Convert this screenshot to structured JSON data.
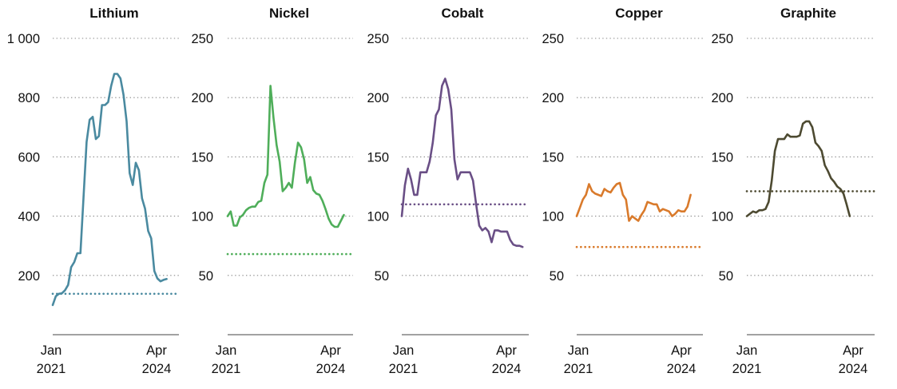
{
  "chart_data": [
    {
      "type": "line",
      "title": "Lithium",
      "color": "#4a8aa0",
      "ylim": [
        0,
        1000
      ],
      "yticks": [
        200,
        400,
        600,
        800,
        1000
      ],
      "ytick_labels": [
        "200",
        "400",
        "600",
        "800",
        "1 000"
      ],
      "xlim": [
        "2021-01",
        "2024-06"
      ],
      "xtick_labels": [
        [
          "Jan",
          "2021"
        ],
        [
          "Apr",
          "2024"
        ]
      ],
      "series": [
        {
          "points": [
            [
              "2021-01",
              100
            ],
            [
              "2021-02",
              130
            ],
            [
              "2021-03",
              138
            ],
            [
              "2021-04",
              140
            ],
            [
              "2021-05",
              150
            ],
            [
              "2021-06",
              168
            ],
            [
              "2021-07",
              228
            ],
            [
              "2021-08",
              245
            ],
            [
              "2021-09",
              275
            ],
            [
              "2021-10",
              275
            ],
            [
              "2021-11",
              460
            ],
            [
              "2021-12",
              650
            ],
            [
              "2022-01",
              725
            ],
            [
              "2022-02",
              735
            ],
            [
              "2022-03",
              660
            ],
            [
              "2022-04",
              670
            ],
            [
              "2022-05",
              775
            ],
            [
              "2022-06",
              775
            ],
            [
              "2022-07",
              785
            ],
            [
              "2022-08",
              840
            ],
            [
              "2022-09",
              880
            ],
            [
              "2022-10",
              880
            ],
            [
              "2022-11",
              865
            ],
            [
              "2022-12",
              810
            ],
            [
              "2023-01",
              720
            ],
            [
              "2023-02",
              545
            ],
            [
              "2023-03",
              505
            ],
            [
              "2023-04",
              580
            ],
            [
              "2023-05",
              555
            ],
            [
              "2023-06",
              460
            ],
            [
              "2023-07",
              425
            ],
            [
              "2023-08",
              350
            ],
            [
              "2023-09",
              325
            ],
            [
              "2023-10",
              215
            ],
            [
              "2023-11",
              190
            ],
            [
              "2023-12",
              180
            ],
            [
              "2024-01",
              185
            ],
            [
              "2024-02",
              188
            ]
          ]
        },
        {
          "dotted": true,
          "points": [
            [
              "2021-01",
              138
            ],
            [
              "2024-06",
              138
            ]
          ]
        }
      ]
    },
    {
      "type": "line",
      "title": "Nickel",
      "color": "#4fae5a",
      "ylim": [
        0,
        250
      ],
      "yticks": [
        50,
        100,
        150,
        200,
        250
      ],
      "ytick_labels": [
        "50",
        "100",
        "150",
        "200",
        "250"
      ],
      "xlim": [
        "2021-01",
        "2024-06"
      ],
      "xtick_labels": [
        [
          "Jan",
          "2021"
        ],
        [
          "Apr",
          "2024"
        ]
      ],
      "series": [
        {
          "points": [
            [
              "2021-01",
              100
            ],
            [
              "2021-02",
              104
            ],
            [
              "2021-03",
              92
            ],
            [
              "2021-04",
              92
            ],
            [
              "2021-05",
              99
            ],
            [
              "2021-06",
              101
            ],
            [
              "2021-07",
              105
            ],
            [
              "2021-08",
              107
            ],
            [
              "2021-09",
              108
            ],
            [
              "2021-10",
              108
            ],
            [
              "2021-11",
              112
            ],
            [
              "2021-12",
              113
            ],
            [
              "2022-01",
              128
            ],
            [
              "2022-02",
              135
            ],
            [
              "2022-03",
              210
            ],
            [
              "2022-04",
              183
            ],
            [
              "2022-05",
              160
            ],
            [
              "2022-06",
              146
            ],
            [
              "2022-07",
              121
            ],
            [
              "2022-08",
              124
            ],
            [
              "2022-09",
              128
            ],
            [
              "2022-10",
              124
            ],
            [
              "2022-11",
              145
            ],
            [
              "2022-12",
              162
            ],
            [
              "2023-01",
              158
            ],
            [
              "2023-02",
              148
            ],
            [
              "2023-03",
              128
            ],
            [
              "2023-04",
              133
            ],
            [
              "2023-05",
              122
            ],
            [
              "2023-06",
              119
            ],
            [
              "2023-07",
              118
            ],
            [
              "2023-08",
              113
            ],
            [
              "2023-09",
              106
            ],
            [
              "2023-10",
              98
            ],
            [
              "2023-11",
              93
            ],
            [
              "2023-12",
              91
            ],
            [
              "2024-01",
              91
            ],
            [
              "2024-02",
              96
            ],
            [
              "2024-03",
              101
            ]
          ]
        },
        {
          "dotted": true,
          "points": [
            [
              "2021-01",
              68
            ],
            [
              "2024-06",
              68
            ]
          ]
        }
      ]
    },
    {
      "type": "line",
      "title": "Cobalt",
      "color": "#6a4f86",
      "ylim": [
        0,
        250
      ],
      "yticks": [
        50,
        100,
        150,
        200,
        250
      ],
      "ytick_labels": [
        "50",
        "100",
        "150",
        "200",
        "250"
      ],
      "xlim": [
        "2021-01",
        "2024-06"
      ],
      "xtick_labels": [
        [
          "Jan",
          "2021"
        ],
        [
          "Apr",
          "2024"
        ]
      ],
      "series": [
        {
          "points": [
            [
              "2021-01",
              100
            ],
            [
              "2021-02",
              126
            ],
            [
              "2021-03",
              140
            ],
            [
              "2021-04",
              131
            ],
            [
              "2021-05",
              118
            ],
            [
              "2021-06",
              118
            ],
            [
              "2021-07",
              137
            ],
            [
              "2021-08",
              137
            ],
            [
              "2021-09",
              137
            ],
            [
              "2021-10",
              146
            ],
            [
              "2021-11",
              162
            ],
            [
              "2021-12",
              185
            ],
            [
              "2022-01",
              190
            ],
            [
              "2022-02",
              210
            ],
            [
              "2022-03",
              216
            ],
            [
              "2022-04",
              207
            ],
            [
              "2022-05",
              190
            ],
            [
              "2022-06",
              148
            ],
            [
              "2022-07",
              131
            ],
            [
              "2022-08",
              137
            ],
            [
              "2022-09",
              137
            ],
            [
              "2022-10",
              137
            ],
            [
              "2022-11",
              137
            ],
            [
              "2022-12",
              130
            ],
            [
              "2023-01",
              110
            ],
            [
              "2023-02",
              92
            ],
            [
              "2023-03",
              88
            ],
            [
              "2023-04",
              90
            ],
            [
              "2023-05",
              87
            ],
            [
              "2023-06",
              78
            ],
            [
              "2023-07",
              88
            ],
            [
              "2023-08",
              88
            ],
            [
              "2023-09",
              87
            ],
            [
              "2023-10",
              87
            ],
            [
              "2023-11",
              87
            ],
            [
              "2023-12",
              80
            ],
            [
              "2024-01",
              76
            ],
            [
              "2024-02",
              75
            ],
            [
              "2024-03",
              75
            ],
            [
              "2024-04",
              74
            ]
          ]
        },
        {
          "dotted": true,
          "points": [
            [
              "2021-01",
              110
            ],
            [
              "2024-06",
              110
            ]
          ]
        }
      ]
    },
    {
      "type": "line",
      "title": "Copper",
      "color": "#d97a2b",
      "ylim": [
        0,
        250
      ],
      "yticks": [
        50,
        100,
        150,
        200,
        250
      ],
      "ytick_labels": [
        "50",
        "100",
        "150",
        "200",
        "250"
      ],
      "xlim": [
        "2021-01",
        "2024-06"
      ],
      "xtick_labels": [
        [
          "Jan",
          "2021"
        ],
        [
          "Apr",
          "2024"
        ]
      ],
      "series": [
        {
          "points": [
            [
              "2021-01",
              100
            ],
            [
              "2021-02",
              107
            ],
            [
              "2021-03",
              114
            ],
            [
              "2021-04",
              118
            ],
            [
              "2021-05",
              127
            ],
            [
              "2021-06",
              121
            ],
            [
              "2021-07",
              119
            ],
            [
              "2021-08",
              118
            ],
            [
              "2021-09",
              117
            ],
            [
              "2021-10",
              123
            ],
            [
              "2021-11",
              121
            ],
            [
              "2021-12",
              120
            ],
            [
              "2022-01",
              124
            ],
            [
              "2022-02",
              127
            ],
            [
              "2022-03",
              128
            ],
            [
              "2022-04",
              118
            ],
            [
              "2022-05",
              114
            ],
            [
              "2022-06",
              96
            ],
            [
              "2022-07",
              100
            ],
            [
              "2022-08",
              98
            ],
            [
              "2022-09",
              96
            ],
            [
              "2022-10",
              101
            ],
            [
              "2022-11",
              105
            ],
            [
              "2022-12",
              112
            ],
            [
              "2023-01",
              111
            ],
            [
              "2023-02",
              110
            ],
            [
              "2023-03",
              110
            ],
            [
              "2023-04",
              104
            ],
            [
              "2023-05",
              106
            ],
            [
              "2023-06",
              105
            ],
            [
              "2023-07",
              104
            ],
            [
              "2023-08",
              100
            ],
            [
              "2023-09",
              102
            ],
            [
              "2023-10",
              105
            ],
            [
              "2023-11",
              104
            ],
            [
              "2023-12",
              104
            ],
            [
              "2024-01",
              108
            ],
            [
              "2024-02",
              118
            ]
          ]
        },
        {
          "dotted": true,
          "points": [
            [
              "2021-01",
              74
            ],
            [
              "2024-06",
              74
            ]
          ]
        }
      ]
    },
    {
      "type": "line",
      "title": "Graphite",
      "color": "#4d4a31",
      "ylim": [
        0,
        250
      ],
      "yticks": [
        50,
        100,
        150,
        200,
        250
      ],
      "ytick_labels": [
        "50",
        "100",
        "150",
        "200",
        "250"
      ],
      "xlim": [
        "2021-01",
        "2024-06"
      ],
      "xtick_labels": [
        [
          "Jan",
          "2021"
        ],
        [
          "Apr",
          "2024"
        ]
      ],
      "series": [
        {
          "points": [
            [
              "2021-01",
              100
            ],
            [
              "2021-02",
              102
            ],
            [
              "2021-03",
              104
            ],
            [
              "2021-04",
              103
            ],
            [
              "2021-05",
              105
            ],
            [
              "2021-06",
              105
            ],
            [
              "2021-07",
              106
            ],
            [
              "2021-08",
              112
            ],
            [
              "2021-09",
              130
            ],
            [
              "2021-10",
              155
            ],
            [
              "2021-11",
              165
            ],
            [
              "2021-12",
              165
            ],
            [
              "2022-01",
              165
            ],
            [
              "2022-02",
              169
            ],
            [
              "2022-03",
              167
            ],
            [
              "2022-04",
              167
            ],
            [
              "2022-05",
              167
            ],
            [
              "2022-06",
              168
            ],
            [
              "2022-07",
              178
            ],
            [
              "2022-08",
              180
            ],
            [
              "2022-09",
              180
            ],
            [
              "2022-10",
              175
            ],
            [
              "2022-11",
              162
            ],
            [
              "2022-12",
              159
            ],
            [
              "2023-01",
              155
            ],
            [
              "2023-02",
              143
            ],
            [
              "2023-03",
              138
            ],
            [
              "2023-04",
              132
            ],
            [
              "2023-05",
              129
            ],
            [
              "2023-06",
              125
            ],
            [
              "2023-07",
              123
            ],
            [
              "2023-08",
              119
            ],
            [
              "2023-09",
              110
            ],
            [
              "2023-10",
              100
            ]
          ]
        },
        {
          "dotted": true,
          "points": [
            [
              "2021-01",
              121
            ],
            [
              "2024-06",
              121
            ]
          ]
        }
      ]
    }
  ]
}
